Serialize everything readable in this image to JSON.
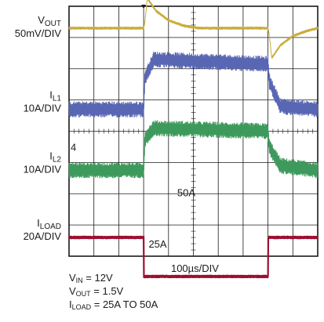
{
  "chart_data": {
    "type": "line",
    "title": "",
    "xlabel": "100µs/DIV",
    "divisions": {
      "x": 10,
      "y": 8
    },
    "step": {
      "load_from_A": 25,
      "load_to_A": 50,
      "up_at_div": 3.0,
      "down_at_div": 8.0
    },
    "series": [
      {
        "name_main": "V",
        "name_sub": "OUT",
        "scale": "50mV/DIV",
        "color": "#c9ad3a",
        "base_div": 0.7,
        "noise_div": 0.04,
        "x_div": [
          0,
          3.0,
          3.05,
          3.15,
          3.5,
          4.0,
          4.6,
          5.2,
          8.0,
          8.05,
          8.15,
          8.5,
          9.0,
          9.6,
          10
        ],
        "y_offset_div": [
          0,
          0,
          0.2,
          0.95,
          0.55,
          0.25,
          0.08,
          0,
          0,
          -0.2,
          -0.95,
          -0.55,
          -0.25,
          -0.08,
          0
        ]
      },
      {
        "name_main": "I",
        "name_sub": "L1",
        "scale": "10A/DIV",
        "color": "#5866b3",
        "base_div": 3.3,
        "noise_div": 0.25,
        "x_div": [
          0,
          3.0,
          3.05,
          3.4,
          8.0,
          8.05,
          8.5,
          10
        ],
        "y_offset_div": [
          0,
          0,
          1.0,
          1.6,
          1.45,
          0.9,
          0.1,
          0
        ]
      },
      {
        "name_main": "I",
        "name_sub": "L2",
        "scale": "10A/DIV",
        "color": "#3e9a5c",
        "base_div": 5.25,
        "noise_div": 0.25,
        "x_div": [
          0,
          3.0,
          3.05,
          3.4,
          8.0,
          8.05,
          8.5,
          10
        ],
        "y_offset_div": [
          0,
          0,
          1.0,
          1.35,
          1.25,
          0.75,
          0.15,
          0
        ]
      },
      {
        "name_main": "I",
        "name_sub": "LOAD",
        "scale": "20A/DIV",
        "color": "#9b1030",
        "base_div": 7.4,
        "noise_div": 0.03,
        "x_div": [
          0,
          3.0,
          3.01,
          8.0,
          8.01,
          10
        ],
        "y_offset_div": [
          0,
          0,
          -1.25,
          -1.25,
          0,
          0
        ]
      }
    ],
    "annotations": {
      "upper_level": "50A",
      "lower_level": "25A"
    },
    "grid": true
  },
  "conditions": {
    "vin": {
      "main": "V",
      "sub": "IN",
      "value": " = 12V"
    },
    "vout": {
      "main": "V",
      "sub": "OUT",
      "value": " = 1.5V"
    },
    "iload": {
      "main": "I",
      "sub": "LOAD",
      "value": " = 25A TO 50A"
    }
  }
}
